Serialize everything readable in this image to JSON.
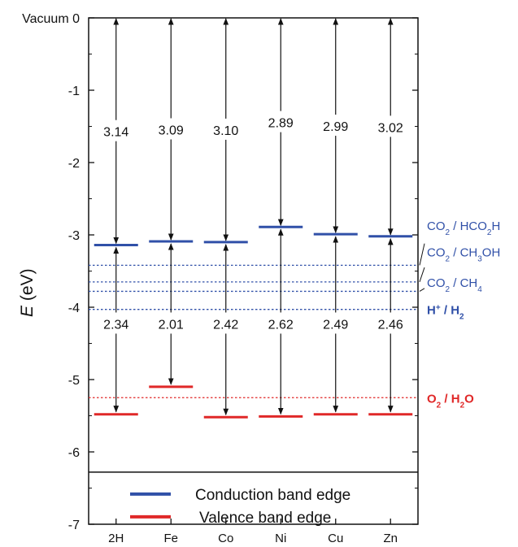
{
  "chart_data": {
    "type": "bar",
    "ylabel_symbol": "E",
    "ylabel_unit": "(eV)",
    "ylim": [
      -7,
      0
    ],
    "vacuum_label": "Vacuum",
    "yticks": [
      "0",
      "-1",
      "-2",
      "-3",
      "-4",
      "-5",
      "-6",
      "-7"
    ],
    "categories": [
      "2H",
      "Fe",
      "Co",
      "Ni",
      "Cu",
      "Zn"
    ],
    "series": [
      {
        "name": "Conduction band edge",
        "color": "#3050a8",
        "values": [
          -3.14,
          -3.09,
          -3.1,
          -2.89,
          -2.99,
          -3.02
        ]
      },
      {
        "name": "Valence band edge",
        "color": "#e02828",
        "values": [
          -5.48,
          -5.1,
          -5.52,
          -5.51,
          -5.48,
          -5.48
        ]
      }
    ],
    "upper_gap_labels": [
      "3.14",
      "3.09",
      "3.10",
      "2.89",
      "2.99",
      "3.02"
    ],
    "lower_gap_labels": [
      "2.34",
      "2.01",
      "2.42",
      "2.62",
      "2.49",
      "2.46"
    ],
    "reference_levels": [
      {
        "id": "co2_hcooh",
        "base": "CO",
        "sub1": "2",
        "mid": " / HCO",
        "sub2": "2",
        "tail": "H",
        "value": -3.42,
        "color": "#3050a8"
      },
      {
        "id": "co2_ch3oh",
        "base": "CO",
        "sub1": "2",
        "mid": " / CH",
        "sub2": "3",
        "tail": "OH",
        "value": -3.65,
        "color": "#3050a8"
      },
      {
        "id": "co2_ch4",
        "base": "CO",
        "sub1": "2",
        "mid": " / CH",
        "sub2": "4",
        "tail": "",
        "value": -3.78,
        "color": "#3050a8"
      },
      {
        "id": "h_h2",
        "base": "H",
        "sup": "+",
        "mid": " / H",
        "sub2": "2",
        "tail": "",
        "value": -4.03,
        "color": "#3050a8"
      },
      {
        "id": "o2_h2o",
        "base": "O",
        "sub1": "2",
        "mid": " / H",
        "sub2": "2",
        "tail": "O",
        "value": -5.25,
        "color": "#e02828"
      }
    ],
    "legend": {
      "position": "bottom",
      "entries": [
        "Conduction band edge",
        "Valence band edge"
      ]
    },
    "grid": false
  }
}
